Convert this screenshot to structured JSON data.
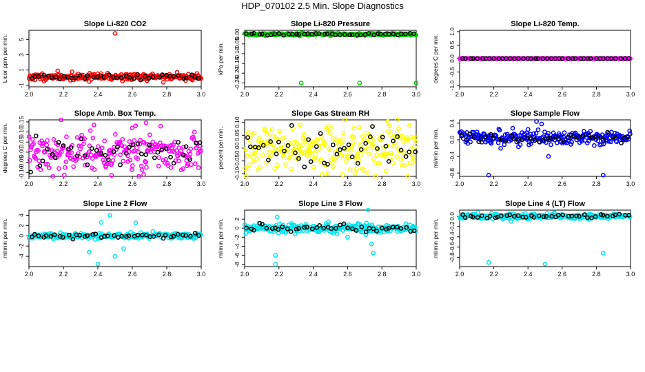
{
  "title": "HDP_070102  2.5 Min. Slope Diagnostics",
  "colors": {
    "black": "#000000",
    "red": "#ff0000",
    "green": "#00cc00",
    "magenta": "#ff00ff",
    "yellow": "#ffff00",
    "blue": "#0000ff",
    "cyan": "#00e5ee"
  },
  "chart_data": [
    {
      "type": "scatter",
      "title": "Slope Li-820 CO2",
      "ylabel": "Licor ppm per min.",
      "xlim": [
        2.0,
        3.0
      ],
      "ylim": [
        -1.2,
        6.2
      ],
      "xticks": [
        "2.0",
        "2.2",
        "2.4",
        "2.6",
        "2.8",
        "3.0"
      ],
      "yticks": [
        {
          "v": -1,
          "t": "-1"
        },
        {
          "v": 1,
          "t": "1"
        },
        {
          "v": 3,
          "t": "3"
        },
        {
          "v": 5,
          "t": "5"
        }
      ],
      "color": "#ff0000",
      "center": 0.1,
      "spread": 0.22,
      "outliers": [
        {
          "x": 2.5,
          "y": 5.8
        },
        {
          "x": 2.35,
          "y": -0.5
        },
        {
          "x": 2.78,
          "y": -0.6
        },
        {
          "x": 2.86,
          "y": 0.7
        }
      ],
      "seed": 11
    },
    {
      "type": "scatter",
      "title": "Slope Li-820 Pressure",
      "ylabel": "kPa per min.",
      "xlim": [
        2.0,
        3.0
      ],
      "ylim": [
        -0.27,
        0.02
      ],
      "xticks": [
        "2.0",
        "2.2",
        "2.4",
        "2.6",
        "2.8",
        "3.0"
      ],
      "yticks": [
        {
          "v": 0,
          "t": "0.00"
        },
        {
          "v": -0.05,
          "t": "-0.05"
        },
        {
          "v": -0.1,
          "t": "-0.10"
        },
        {
          "v": -0.15,
          "t": "-0.15"
        },
        {
          "v": -0.2,
          "t": "-0.20"
        },
        {
          "v": -0.25,
          "t": "-0.25"
        }
      ],
      "color": "#00cc00",
      "center": 0.0,
      "spread": 0.003,
      "outliers": [
        {
          "x": 2.33,
          "y": -0.25
        },
        {
          "x": 2.67,
          "y": -0.25
        },
        {
          "x": 3.0,
          "y": -0.25
        },
        {
          "x": 2.12,
          "y": -0.007
        },
        {
          "x": 2.5,
          "y": -0.008
        }
      ],
      "seed": 22
    },
    {
      "type": "scatter",
      "title": "Slope Li-820 Temp.",
      "ylabel": "degrees C per min.",
      "xlim": [
        2.0,
        3.0
      ],
      "ylim": [
        -1.05,
        1.05
      ],
      "xticks": [
        "2.0",
        "2.2",
        "2.4",
        "2.6",
        "2.8",
        "3.0"
      ],
      "yticks": [
        {
          "v": -1,
          "t": "-1.0"
        },
        {
          "v": -0.5,
          "t": "-0.5"
        },
        {
          "v": 0,
          "t": "0.0"
        },
        {
          "v": 0.5,
          "t": "0.5"
        },
        {
          "v": 1,
          "t": "1.0"
        }
      ],
      "color": "#ff00ff",
      "center": 0.0,
      "spread": 0.0,
      "outliers": [],
      "seed": 33
    },
    {
      "type": "scatter",
      "title": "Slope Amb. Box Temp.",
      "ylabel": "degrees C per min.",
      "xlim": [
        2.0,
        3.0
      ],
      "ylim": [
        -0.12,
        0.16
      ],
      "xticks": [
        "2.0",
        "2.2",
        "2.4",
        "2.6",
        "2.8",
        "3.0"
      ],
      "yticks": [
        {
          "v": -0.1,
          "t": "-0.10"
        },
        {
          "v": -0.05,
          "t": "-0.05"
        },
        {
          "v": 0,
          "t": "0.00"
        },
        {
          "v": 0.05,
          "t": "0.05"
        },
        {
          "v": 0.1,
          "t": "0.10"
        },
        {
          "v": 0.15,
          "t": "0.15"
        }
      ],
      "color": "#ff00ff",
      "center": 0.0,
      "spread": 0.05,
      "outliers": [
        {
          "x": 2.68,
          "y": 0.145
        },
        {
          "x": 2.48,
          "y": -0.115
        },
        {
          "x": 2.6,
          "y": 0.12
        }
      ],
      "seed": 44
    },
    {
      "type": "scatter",
      "title": "Slope Gas Stream RH",
      "ylabel": "percent per min.",
      "xlim": [
        2.0,
        3.0
      ],
      "ylim": [
        -0.11,
        0.11
      ],
      "xticks": [
        "2.0",
        "2.2",
        "2.4",
        "2.6",
        "2.8",
        "3.0"
      ],
      "yticks": [
        {
          "v": -0.1,
          "t": "-0.10"
        },
        {
          "v": -0.05,
          "t": "-0.05"
        },
        {
          "v": 0,
          "t": "0.00"
        },
        {
          "v": 0.05,
          "t": "0.05"
        },
        {
          "v": 0.1,
          "t": "0.10"
        }
      ],
      "color": "#ffff00",
      "center": 0.0,
      "spread": 0.05,
      "outliers": [],
      "seed": 55
    },
    {
      "type": "scatter",
      "title": "Slope Sample Flow",
      "ylabel": "ml/min per min.",
      "xlim": [
        2.0,
        3.0
      ],
      "ylim": [
        -0.88,
        0.48
      ],
      "xticks": [
        "2.0",
        "2.2",
        "2.4",
        "2.6",
        "2.8",
        "3.0"
      ],
      "yticks": [
        {
          "v": -0.8,
          "t": "-0.8"
        },
        {
          "v": -0.4,
          "t": "-0.4"
        },
        {
          "v": 0,
          "t": "0.0"
        },
        {
          "v": 0.4,
          "t": "0.4"
        }
      ],
      "color": "#0000ff",
      "center": 0.05,
      "spread": 0.08,
      "outliers": [
        {
          "x": 2.45,
          "y": 0.44
        },
        {
          "x": 2.48,
          "y": 0.38
        },
        {
          "x": 2.17,
          "y": -0.85
        },
        {
          "x": 2.52,
          "y": -0.4
        },
        {
          "x": 2.84,
          "y": -0.85
        },
        {
          "x": 2.4,
          "y": 0.25
        }
      ],
      "seed": 66
    },
    {
      "type": "scatter",
      "title": "Slope Line 2 Flow",
      "ylabel": "ml/min per min.",
      "xlim": [
        2.0,
        3.0
      ],
      "ylim": [
        -6.0,
        5.0
      ],
      "xticks": [
        "2.0",
        "2.2",
        "2.4",
        "2.6",
        "2.8",
        "3.0"
      ],
      "yticks": [
        {
          "v": -4,
          "t": "-4"
        },
        {
          "v": -2,
          "t": "-2"
        },
        {
          "v": 0,
          "t": "0"
        },
        {
          "v": 2,
          "t": "2"
        },
        {
          "v": 4,
          "t": "4"
        }
      ],
      "color": "#00e5ee",
      "center": 0.0,
      "spread": 0.3,
      "outliers": [
        {
          "x": 2.4,
          "y": -5.5
        },
        {
          "x": 2.47,
          "y": 4.0
        },
        {
          "x": 2.5,
          "y": -4.0
        },
        {
          "x": 2.55,
          "y": -2.5
        },
        {
          "x": 2.62,
          "y": 2.5
        },
        {
          "x": 2.35,
          "y": -3.2
        },
        {
          "x": 2.42,
          "y": 2.6
        }
      ],
      "seed": 77
    },
    {
      "type": "scatter",
      "title": "Slope Line 3 Flow",
      "ylabel": "ml/min per min.",
      "xlim": [
        2.0,
        3.0
      ],
      "ylim": [
        -8.5,
        4.0
      ],
      "xticks": [
        "2.0",
        "2.2",
        "2.4",
        "2.6",
        "2.8",
        "3.0"
      ],
      "yticks": [
        {
          "v": -8,
          "t": "-8"
        },
        {
          "v": -6,
          "t": "-6"
        },
        {
          "v": -4,
          "t": "-4"
        },
        {
          "v": -2,
          "t": "-2"
        },
        {
          "v": 0,
          "t": "0"
        },
        {
          "v": 2,
          "t": "2"
        }
      ],
      "color": "#00e5ee",
      "center": 0.0,
      "spread": 0.5,
      "outliers": [
        {
          "x": 2.18,
          "y": -8.0
        },
        {
          "x": 2.18,
          "y": -6.0
        },
        {
          "x": 2.75,
          "y": -5.5
        },
        {
          "x": 2.74,
          "y": -3.5
        },
        {
          "x": 2.72,
          "y": 4.0
        },
        {
          "x": 2.19,
          "y": 2.5
        },
        {
          "x": 2.6,
          "y": -2.0
        }
      ],
      "seed": 88
    },
    {
      "type": "scatter",
      "title": "Slope Line 4 (LT) Flow",
      "ylabel": "ml/min per min.",
      "xlim": [
        2.0,
        3.0
      ],
      "ylim": [
        -0.98,
        0.12
      ],
      "xticks": [
        "2.0",
        "2.2",
        "2.4",
        "2.6",
        "2.8",
        "3.0"
      ],
      "yticks": [
        {
          "v": -0.8,
          "t": "-0.8"
        },
        {
          "v": -0.6,
          "t": "-0.6"
        },
        {
          "v": -0.4,
          "t": "-0.4"
        },
        {
          "v": -0.2,
          "t": "-0.2"
        },
        {
          "v": 0,
          "t": "0.0"
        }
      ],
      "color": "#00e5ee",
      "center": 0.0,
      "spread": 0.025,
      "outliers": [
        {
          "x": 2.17,
          "y": -0.9
        },
        {
          "x": 2.5,
          "y": -0.93
        },
        {
          "x": 2.84,
          "y": -0.72
        },
        {
          "x": 2.3,
          "y": -0.1
        }
      ],
      "seed": 99
    }
  ]
}
